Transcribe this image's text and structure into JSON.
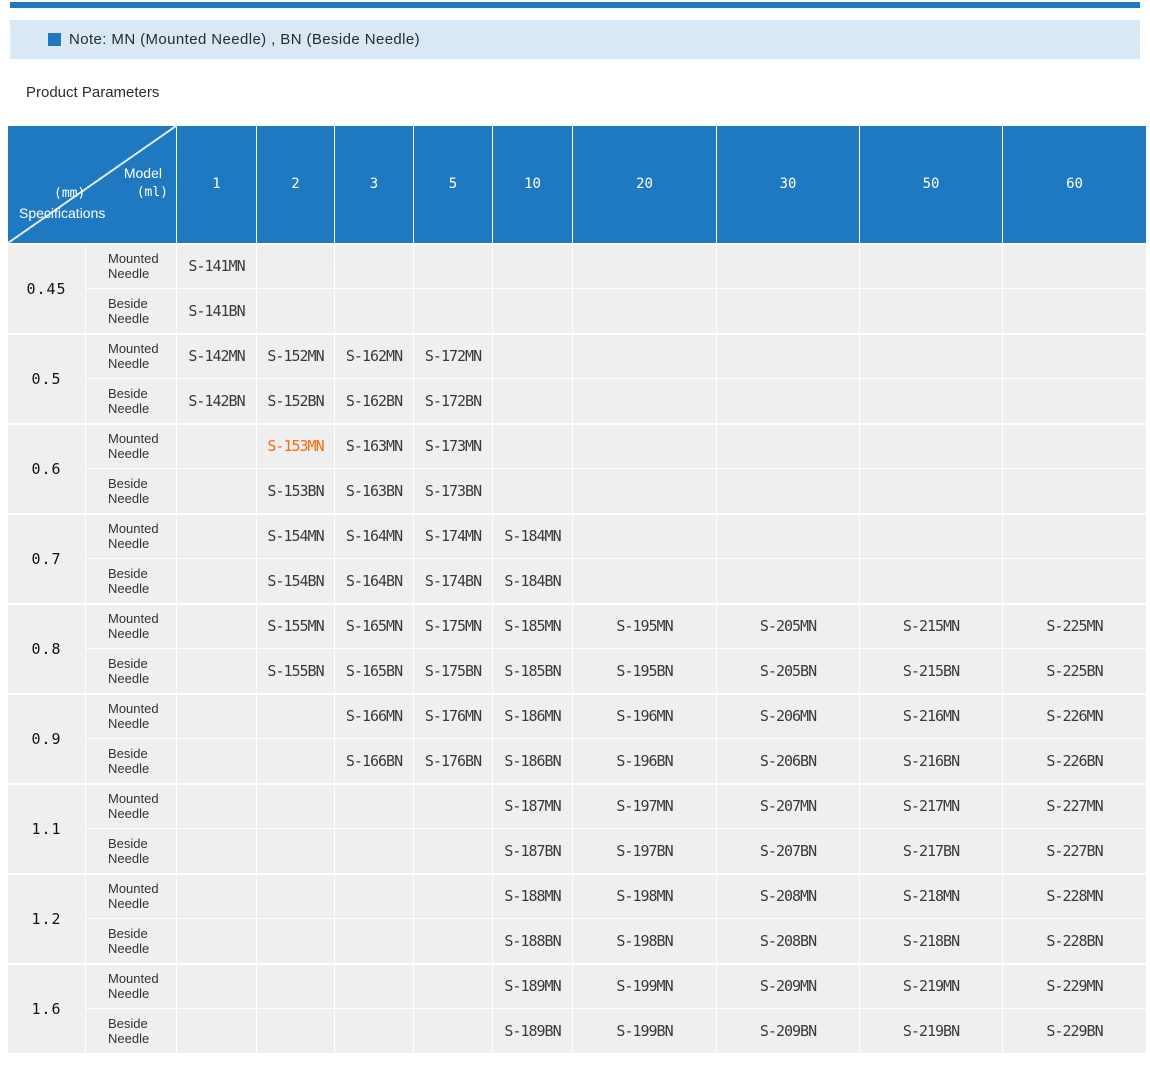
{
  "page": {
    "heading": "Product Parameters"
  },
  "note": {
    "text": "Note: MN (Mounted Needle) , BN (Beside Needle)"
  },
  "colors": {
    "accent_blue": "#1e79c0",
    "note_band_bg": "#d9e8f5",
    "cell_bg": "#efefef",
    "highlight_orange": "#f8690c"
  },
  "table": {
    "corner": {
      "model_label": "Model",
      "model_unit": "(ml)",
      "spec_unit": "(mm)",
      "spec_label": "Specifications"
    },
    "columns": [
      "1",
      "2",
      "3",
      "5",
      "10",
      "20",
      "30",
      "50",
      "60"
    ],
    "needle_types": [
      "Mounted Needle",
      "Beside Needle"
    ],
    "highlight": {
      "code": "S-153MN",
      "color": "#f8690c"
    },
    "groups": [
      {
        "spec": "0.45",
        "mn": [
          "S-141MN",
          "",
          "",
          "",
          "",
          "",
          "",
          "",
          ""
        ],
        "bn": [
          "S-141BN",
          "",
          "",
          "",
          "",
          "",
          "",
          "",
          ""
        ]
      },
      {
        "spec": "0.5",
        "mn": [
          "S-142MN",
          "S-152MN",
          "S-162MN",
          "S-172MN",
          "",
          "",
          "",
          "",
          ""
        ],
        "bn": [
          "S-142BN",
          "S-152BN",
          "S-162BN",
          "S-172BN",
          "",
          "",
          "",
          "",
          ""
        ]
      },
      {
        "spec": "0.6",
        "mn": [
          "",
          "S-153MN",
          "S-163MN",
          "S-173MN",
          "",
          "",
          "",
          "",
          ""
        ],
        "bn": [
          "",
          "S-153BN",
          "S-163BN",
          "S-173BN",
          "",
          "",
          "",
          "",
          ""
        ]
      },
      {
        "spec": "0.7",
        "mn": [
          "",
          "S-154MN",
          "S-164MN",
          "S-174MN",
          "S-184MN",
          "",
          "",
          "",
          ""
        ],
        "bn": [
          "",
          "S-154BN",
          "S-164BN",
          "S-174BN",
          "S-184BN",
          "",
          "",
          "",
          ""
        ]
      },
      {
        "spec": "0.8",
        "mn": [
          "",
          "S-155MN",
          "S-165MN",
          "S-175MN",
          "S-185MN",
          "S-195MN",
          "S-205MN",
          "S-215MN",
          "S-225MN"
        ],
        "bn": [
          "",
          "S-155BN",
          "S-165BN",
          "S-175BN",
          "S-185BN",
          "S-195BN",
          "S-205BN",
          "S-215BN",
          "S-225BN"
        ]
      },
      {
        "spec": "0.9",
        "mn": [
          "",
          "",
          "S-166MN",
          "S-176MN",
          "S-186MN",
          "S-196MN",
          "S-206MN",
          "S-216MN",
          "S-226MN"
        ],
        "bn": [
          "",
          "",
          "S-166BN",
          "S-176BN",
          "S-186BN",
          "S-196BN",
          "S-206BN",
          "S-216BN",
          "S-226BN"
        ]
      },
      {
        "spec": "1.1",
        "mn": [
          "",
          "",
          "",
          "",
          "S-187MN",
          "S-197MN",
          "S-207MN",
          "S-217MN",
          "S-227MN"
        ],
        "bn": [
          "",
          "",
          "",
          "",
          "S-187BN",
          "S-197BN",
          "S-207BN",
          "S-217BN",
          "S-227BN"
        ]
      },
      {
        "spec": "1.2",
        "mn": [
          "",
          "",
          "",
          "",
          "S-188MN",
          "S-198MN",
          "S-208MN",
          "S-218MN",
          "S-228MN"
        ],
        "bn": [
          "",
          "",
          "",
          "",
          "S-188BN",
          "S-198BN",
          "S-208BN",
          "S-218BN",
          "S-228BN"
        ]
      },
      {
        "spec": "1.6",
        "mn": [
          "",
          "",
          "",
          "",
          "S-189MN",
          "S-199MN",
          "S-209MN",
          "S-219MN",
          "S-229MN"
        ],
        "bn": [
          "",
          "",
          "",
          "",
          "S-189BN",
          "S-199BN",
          "S-209BN",
          "S-219BN",
          "S-229BN"
        ]
      }
    ]
  }
}
